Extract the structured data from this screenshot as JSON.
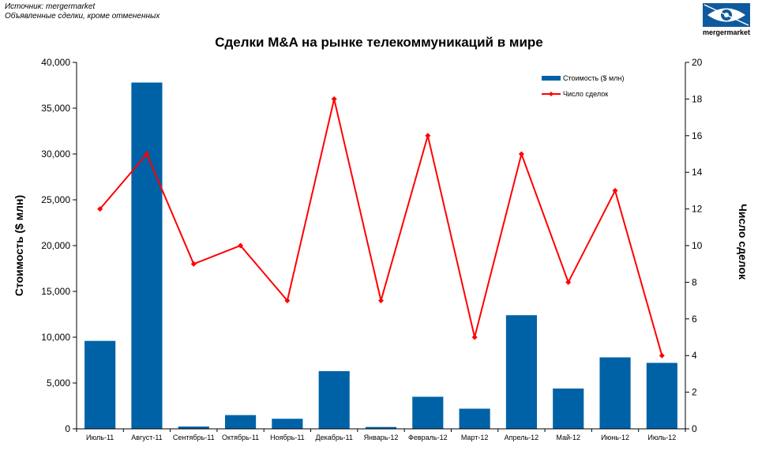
{
  "source": {
    "line1": "Источник: mergermarket",
    "line2": "Объявленные сделки, кроме отмененных"
  },
  "logo": {
    "text": "mergermarket",
    "icon": "eye-logo-icon",
    "color": "#0f5a9e"
  },
  "colors": {
    "bar": "#0062a6",
    "line": "#ff0000"
  },
  "chart_data": {
    "type": "bar",
    "title": "Сделки M&A на рынке телекоммуникаций в мире",
    "xlabel": "",
    "ylabel": "Стоимость ($ млн)",
    "y2label": "Число сделок",
    "ylim": [
      0,
      40000
    ],
    "y2lim": [
      0,
      20
    ],
    "yticks": [
      "0",
      "5,000",
      "10,000",
      "15,000",
      "20,000",
      "25,000",
      "30,000",
      "35,000",
      "40,000"
    ],
    "y2ticks": [
      "0",
      "2",
      "4",
      "6",
      "8",
      "10",
      "12",
      "14",
      "16",
      "18",
      "20"
    ],
    "grid": false,
    "legend": "top-right",
    "categories": [
      "Июль-11",
      "Август-11",
      "Сентябрь-11",
      "Октябрь-11",
      "Ноябрь-11",
      "Декабрь-11",
      "Январь-12",
      "Февраль-12",
      "Март-12",
      "Апрель-12",
      "Май-12",
      "Июнь-12",
      "Июль-12"
    ],
    "series": [
      {
        "name": "Стоимость ($ млн)",
        "type": "bar",
        "axis": "left",
        "values": [
          9600,
          37800,
          250,
          1500,
          1100,
          6300,
          200,
          3500,
          2200,
          12400,
          4400,
          7800,
          7200
        ]
      },
      {
        "name": "Число сделок",
        "type": "line",
        "axis": "right",
        "values": [
          12,
          15,
          9,
          10,
          7,
          18,
          7,
          16,
          5,
          15,
          8,
          13,
          4
        ]
      }
    ]
  }
}
